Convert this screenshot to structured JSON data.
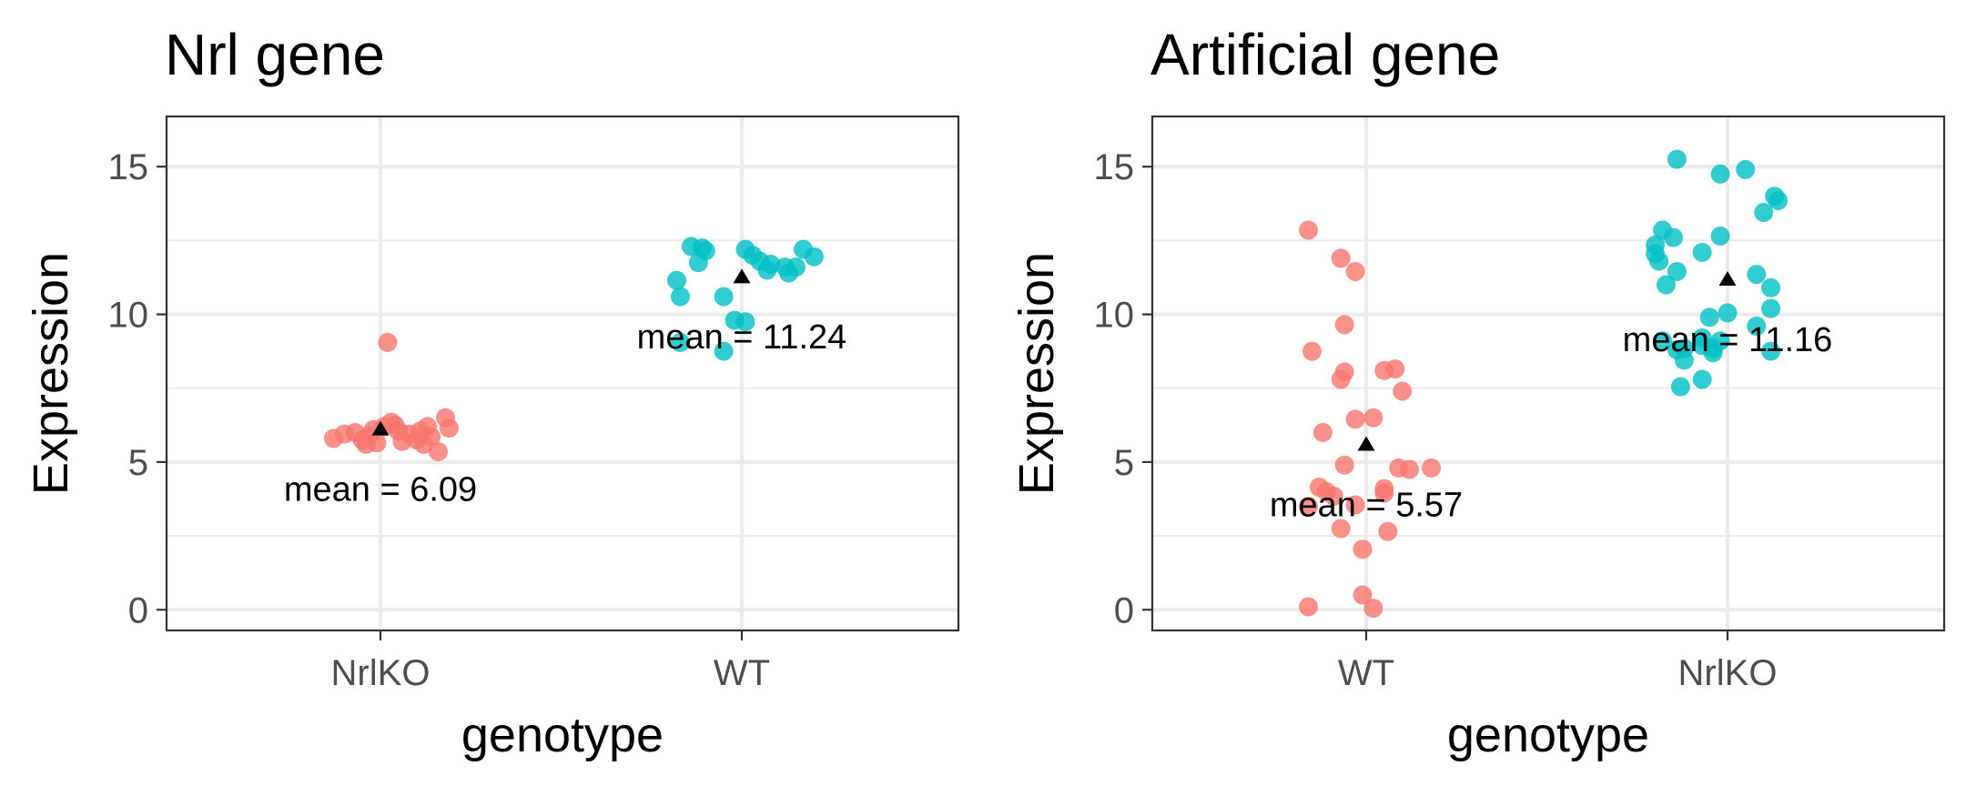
{
  "chart_data": [
    {
      "type": "scatter",
      "title": "Nrl gene",
      "xlabel": "genotype",
      "ylabel": "Expression",
      "categories": [
        "NrlKO",
        "WT"
      ],
      "ylim": [
        -0.7,
        16.7
      ],
      "yticks": [
        0,
        5,
        10,
        15
      ],
      "grid": true,
      "series": [
        {
          "category": "NrlKO",
          "color": "#F8766D",
          "points": [
            {
              "x": -0.13,
              "y": 5.8
            },
            {
              "x": -0.1,
              "y": 5.95
            },
            {
              "x": -0.07,
              "y": 6.0
            },
            {
              "x": -0.05,
              "y": 5.75
            },
            {
              "x": -0.04,
              "y": 5.6
            },
            {
              "x": -0.03,
              "y": 5.9
            },
            {
              "x": -0.02,
              "y": 6.1
            },
            {
              "x": -0.01,
              "y": 5.65
            },
            {
              "x": 0.01,
              "y": 6.2
            },
            {
              "x": 0.02,
              "y": 9.05
            },
            {
              "x": 0.03,
              "y": 6.35
            },
            {
              "x": 0.04,
              "y": 6.25
            },
            {
              "x": 0.05,
              "y": 6.05
            },
            {
              "x": 0.06,
              "y": 5.7
            },
            {
              "x": 0.08,
              "y": 5.95
            },
            {
              "x": 0.1,
              "y": 5.75
            },
            {
              "x": 0.11,
              "y": 6.05
            },
            {
              "x": 0.12,
              "y": 5.6
            },
            {
              "x": 0.13,
              "y": 6.2
            },
            {
              "x": 0.14,
              "y": 5.85
            },
            {
              "x": 0.16,
              "y": 5.35
            },
            {
              "x": 0.18,
              "y": 6.5
            },
            {
              "x": 0.19,
              "y": 6.15
            }
          ]
        },
        {
          "category": "WT",
          "color": "#00BFC4",
          "points": [
            {
              "x": -0.18,
              "y": 11.15
            },
            {
              "x": -0.17,
              "y": 10.6
            },
            {
              "x": -0.17,
              "y": 9.05
            },
            {
              "x": -0.14,
              "y": 12.3
            },
            {
              "x": -0.12,
              "y": 11.75
            },
            {
              "x": -0.11,
              "y": 12.25
            },
            {
              "x": -0.1,
              "y": 12.15
            },
            {
              "x": -0.05,
              "y": 10.6
            },
            {
              "x": -0.05,
              "y": 8.75
            },
            {
              "x": -0.02,
              "y": 9.8
            },
            {
              "x": 0.01,
              "y": 9.75
            },
            {
              "x": 0.01,
              "y": 12.2
            },
            {
              "x": 0.03,
              "y": 12.0
            },
            {
              "x": 0.05,
              "y": 11.8
            },
            {
              "x": 0.07,
              "y": 11.5
            },
            {
              "x": 0.08,
              "y": 11.7
            },
            {
              "x": 0.12,
              "y": 11.6
            },
            {
              "x": 0.13,
              "y": 11.4
            },
            {
              "x": 0.15,
              "y": 11.6
            },
            {
              "x": 0.17,
              "y": 12.2
            },
            {
              "x": 0.2,
              "y": 11.95
            }
          ]
        }
      ],
      "means": [
        {
          "category": "NrlKO",
          "value": 6.09,
          "label": "mean =  6.09"
        },
        {
          "category": "WT",
          "value": 11.24,
          "label": "mean =  11.24"
        }
      ]
    },
    {
      "type": "scatter",
      "title": "Artificial gene",
      "xlabel": "genotype",
      "ylabel": "Expression",
      "categories": [
        "WT",
        "NrlKO"
      ],
      "ylim": [
        -0.7,
        16.7
      ],
      "yticks": [
        0,
        5,
        10,
        15
      ],
      "grid": true,
      "series": [
        {
          "category": "WT",
          "color": "#F8766D",
          "points": [
            {
              "x": -0.16,
              "y": 12.85
            },
            {
              "x": -0.15,
              "y": 8.75
            },
            {
              "x": -0.16,
              "y": 0.1
            },
            {
              "x": -0.12,
              "y": 6.0
            },
            {
              "x": -0.13,
              "y": 4.15
            },
            {
              "x": -0.11,
              "y": 4.0
            },
            {
              "x": -0.09,
              "y": 3.85
            },
            {
              "x": -0.07,
              "y": 11.9
            },
            {
              "x": -0.07,
              "y": 7.8
            },
            {
              "x": -0.06,
              "y": 8.05
            },
            {
              "x": -0.06,
              "y": 9.65
            },
            {
              "x": -0.06,
              "y": 4.9
            },
            {
              "x": -0.07,
              "y": 2.75
            },
            {
              "x": -0.16,
              "y": 3.5
            },
            {
              "x": -0.03,
              "y": 11.45
            },
            {
              "x": -0.03,
              "y": 6.45
            },
            {
              "x": -0.03,
              "y": 3.55
            },
            {
              "x": -0.01,
              "y": 2.05
            },
            {
              "x": -0.01,
              "y": 0.5
            },
            {
              "x": 0.02,
              "y": 0.05
            },
            {
              "x": 0.02,
              "y": 6.5
            },
            {
              "x": 0.05,
              "y": 8.1
            },
            {
              "x": 0.05,
              "y": 4.1
            },
            {
              "x": 0.05,
              "y": 3.95
            },
            {
              "x": 0.06,
              "y": 2.65
            },
            {
              "x": 0.08,
              "y": 8.15
            },
            {
              "x": 0.09,
              "y": 4.8
            },
            {
              "x": 0.1,
              "y": 7.4
            },
            {
              "x": 0.12,
              "y": 4.75
            },
            {
              "x": 0.18,
              "y": 4.8
            }
          ]
        },
        {
          "category": "NrlKO",
          "color": "#00BFC4",
          "points": [
            {
              "x": -0.2,
              "y": 12.35
            },
            {
              "x": -0.2,
              "y": 12.05
            },
            {
              "x": -0.19,
              "y": 11.8
            },
            {
              "x": -0.18,
              "y": 12.85
            },
            {
              "x": -0.18,
              "y": 9.1
            },
            {
              "x": -0.17,
              "y": 11.0
            },
            {
              "x": -0.15,
              "y": 12.6
            },
            {
              "x": -0.14,
              "y": 11.45
            },
            {
              "x": -0.14,
              "y": 8.8
            },
            {
              "x": -0.14,
              "y": 15.25
            },
            {
              "x": -0.13,
              "y": 7.55
            },
            {
              "x": -0.12,
              "y": 8.85
            },
            {
              "x": -0.12,
              "y": 8.45
            },
            {
              "x": -0.07,
              "y": 8.95
            },
            {
              "x": -0.07,
              "y": 9.2
            },
            {
              "x": -0.07,
              "y": 7.8
            },
            {
              "x": -0.07,
              "y": 12.1
            },
            {
              "x": -0.05,
              "y": 9.9
            },
            {
              "x": -0.04,
              "y": 8.7
            },
            {
              "x": -0.04,
              "y": 8.85
            },
            {
              "x": -0.02,
              "y": 9.1
            },
            {
              "x": -0.02,
              "y": 12.65
            },
            {
              "x": -0.02,
              "y": 14.75
            },
            {
              "x": 0.0,
              "y": 10.05
            },
            {
              "x": 0.05,
              "y": 14.9
            },
            {
              "x": 0.08,
              "y": 11.35
            },
            {
              "x": 0.08,
              "y": 9.6
            },
            {
              "x": 0.1,
              "y": 13.45
            },
            {
              "x": 0.12,
              "y": 10.9
            },
            {
              "x": 0.12,
              "y": 10.2
            },
            {
              "x": 0.12,
              "y": 8.75
            },
            {
              "x": 0.13,
              "y": 14.0
            },
            {
              "x": 0.14,
              "y": 13.85
            }
          ]
        }
      ],
      "means": [
        {
          "category": "WT",
          "value": 5.57,
          "label": "mean =  5.57"
        },
        {
          "category": "NrlKO",
          "value": 11.16,
          "label": "mean =  11.16"
        }
      ]
    }
  ]
}
